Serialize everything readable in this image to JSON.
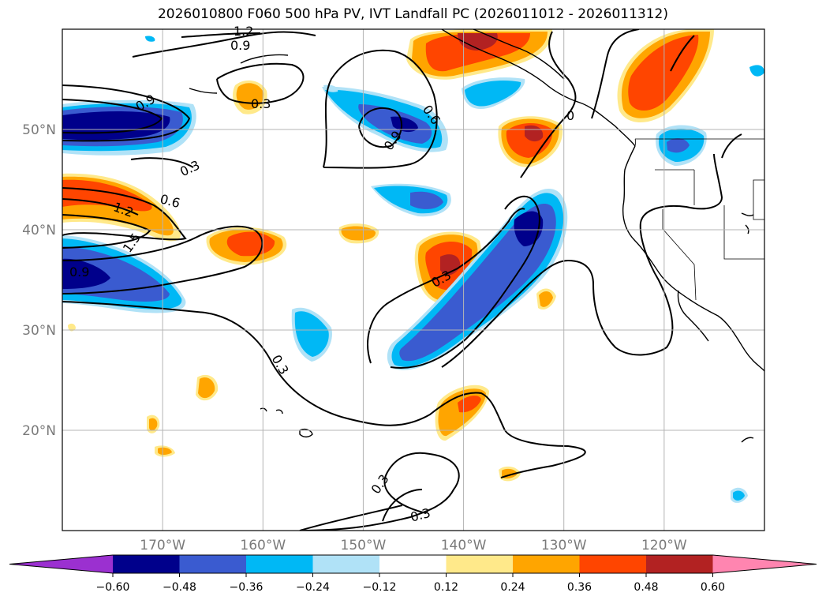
{
  "title": "2026010800 F060 500 hPa PV, IVT Landfall PC (2026011012 - 2026011312)",
  "map": {
    "lon_range": [
      -180,
      -110
    ],
    "lat_range": [
      10,
      60
    ],
    "lat_ticks": [
      {
        "lat": 50,
        "label": "50°N"
      },
      {
        "lat": 40,
        "label": "40°N"
      },
      {
        "lat": 30,
        "label": "30°N"
      },
      {
        "lat": 20,
        "label": "20°N"
      }
    ],
    "lon_ticks": [
      {
        "lon": -170,
        "label": "170°W"
      },
      {
        "lon": -160,
        "label": "160°W"
      },
      {
        "lon": -150,
        "label": "150°W"
      },
      {
        "lon": -140,
        "label": "140°W"
      },
      {
        "lon": -130,
        "label": "130°W"
      },
      {
        "lon": -120,
        "label": "120°W"
      }
    ],
    "grid": true
  },
  "contour_labels": [
    "0.9",
    "1.2",
    "0.3",
    "0.9",
    "0.3",
    "0.6",
    "1.2",
    "1.5",
    "0.9",
    "0.6",
    "0.9",
    "0",
    "0.3",
    "0.3",
    "0.3",
    "0.3"
  ],
  "colorbar": {
    "ticks": [
      "−0.60",
      "−0.48",
      "−0.36",
      "−0.24",
      "−0.12",
      "0.12",
      "0.24",
      "0.36",
      "0.48",
      "0.60"
    ],
    "colors": [
      "#9b30d0",
      "#00008b",
      "#3a5bd0",
      "#00b8f5",
      "#b0e2f7",
      "#ffffff",
      "#ffe98a",
      "#ffa500",
      "#ff4500",
      "#b22222",
      "#ff85b0"
    ]
  }
}
